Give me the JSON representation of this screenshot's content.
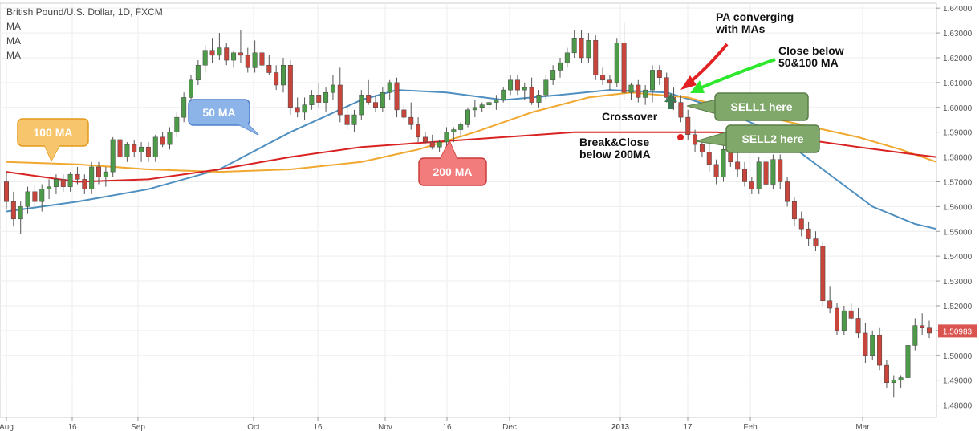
{
  "header": {
    "symbol": "British Pound/U.S. Dollar, 1D, FXCM",
    "indicators": [
      "MA",
      "MA",
      "MA"
    ]
  },
  "colors": {
    "up": "#4d9a48",
    "down": "#c8453c",
    "ma50": "#4f8fbf",
    "ma100": "#f0a830",
    "ma200": "#d92323",
    "callout50": "#8db4e8",
    "callout100": "#f7c56b",
    "callout200": "#f27b7b",
    "sell": "#7fa86a",
    "priceTag": "#d9534f",
    "greenArrow": "#2ee82e",
    "redArrow": "#e22222",
    "grid": "#eeeeee"
  },
  "chart_data": {
    "type": "candlestick",
    "ylim": [
      1.475,
      1.642
    ],
    "yticks": [
      "1.48000",
      "1.49000",
      "1.50000",
      "1.51000",
      "1.52000",
      "1.53000",
      "1.54000",
      "1.55000",
      "1.56000",
      "1.57000",
      "1.58000",
      "1.59000",
      "1.60000",
      "1.61000",
      "1.62000",
      "1.63000",
      "1.64000"
    ],
    "xticks": [
      "Aug",
      "16",
      "Sep",
      "Oct",
      "16",
      "Nov",
      "16",
      "Dec",
      "2013",
      "17",
      "Feb",
      "Mar"
    ],
    "current_price": "1.50983",
    "candles": [
      [
        1.57,
        1.574,
        1.559,
        1.562
      ],
      [
        1.562,
        1.566,
        1.552,
        1.555
      ],
      [
        1.555,
        1.562,
        1.549,
        1.56
      ],
      [
        1.56,
        1.568,
        1.557,
        1.566
      ],
      [
        1.566,
        1.569,
        1.56,
        1.562
      ],
      [
        1.562,
        1.569,
        1.558,
        1.567
      ],
      [
        1.567,
        1.571,
        1.563,
        1.568
      ],
      [
        1.568,
        1.573,
        1.565,
        1.571
      ],
      [
        1.571,
        1.573,
        1.566,
        1.568
      ],
      [
        1.568,
        1.574,
        1.566,
        1.573
      ],
      [
        1.573,
        1.576,
        1.569,
        1.571
      ],
      [
        1.571,
        1.573,
        1.565,
        1.567
      ],
      [
        1.567,
        1.578,
        1.565,
        1.576
      ],
      [
        1.576,
        1.578,
        1.569,
        1.572
      ],
      [
        1.572,
        1.576,
        1.568,
        1.574
      ],
      [
        1.574,
        1.588,
        1.572,
        1.587
      ],
      [
        1.587,
        1.589,
        1.579,
        1.58
      ],
      [
        1.58,
        1.586,
        1.578,
        1.585
      ],
      [
        1.585,
        1.587,
        1.58,
        1.582
      ],
      [
        1.582,
        1.586,
        1.578,
        1.584
      ],
      [
        1.584,
        1.586,
        1.578,
        1.58
      ],
      [
        1.58,
        1.589,
        1.578,
        1.588
      ],
      [
        1.588,
        1.59,
        1.584,
        1.585
      ],
      [
        1.585,
        1.592,
        1.583,
        1.59
      ],
      [
        1.59,
        1.598,
        1.588,
        1.596
      ],
      [
        1.596,
        1.606,
        1.594,
        1.604
      ],
      [
        1.604,
        1.613,
        1.602,
        1.611
      ],
      [
        1.611,
        1.619,
        1.609,
        1.617
      ],
      [
        1.617,
        1.625,
        1.614,
        1.623
      ],
      [
        1.623,
        1.628,
        1.618,
        1.621
      ],
      [
        1.621,
        1.63,
        1.619,
        1.624
      ],
      [
        1.624,
        1.626,
        1.617,
        1.619
      ],
      [
        1.619,
        1.623,
        1.616,
        1.622
      ],
      [
        1.622,
        1.631,
        1.618,
        1.621
      ],
      [
        1.621,
        1.624,
        1.614,
        1.616
      ],
      [
        1.616,
        1.627,
        1.614,
        1.622
      ],
      [
        1.622,
        1.625,
        1.615,
        1.617
      ],
      [
        1.617,
        1.621,
        1.613,
        1.614
      ],
      [
        1.614,
        1.617,
        1.607,
        1.609
      ],
      [
        1.609,
        1.62,
        1.606,
        1.617
      ],
      [
        1.617,
        1.619,
        1.597,
        1.6
      ],
      [
        1.6,
        1.604,
        1.596,
        1.598
      ],
      [
        1.598,
        1.604,
        1.595,
        1.601
      ],
      [
        1.601,
        1.607,
        1.599,
        1.605
      ],
      [
        1.605,
        1.61,
        1.6,
        1.602
      ],
      [
        1.602,
        1.608,
        1.598,
        1.606
      ],
      [
        1.606,
        1.613,
        1.603,
        1.609
      ],
      [
        1.609,
        1.616,
        1.594,
        1.597
      ],
      [
        1.597,
        1.601,
        1.591,
        1.593
      ],
      [
        1.593,
        1.599,
        1.59,
        1.597
      ],
      [
        1.597,
        1.607,
        1.595,
        1.605
      ],
      [
        1.605,
        1.611,
        1.601,
        1.602
      ],
      [
        1.602,
        1.605,
        1.598,
        1.6
      ],
      [
        1.6,
        1.608,
        1.598,
        1.606
      ],
      [
        1.606,
        1.611,
        1.603,
        1.61
      ],
      [
        1.61,
        1.612,
        1.596,
        1.599
      ],
      [
        1.599,
        1.601,
        1.595,
        1.596
      ],
      [
        1.596,
        1.602,
        1.591,
        1.593
      ],
      [
        1.593,
        1.596,
        1.586,
        1.588
      ],
      [
        1.588,
        1.59,
        1.585,
        1.586
      ],
      [
        1.586,
        1.589,
        1.583,
        1.584
      ],
      [
        1.584,
        1.587,
        1.582,
        1.586
      ],
      [
        1.586,
        1.592,
        1.584,
        1.59
      ],
      [
        1.59,
        1.592,
        1.586,
        1.591
      ],
      [
        1.591,
        1.594,
        1.588,
        1.593
      ],
      [
        1.593,
        1.6,
        1.592,
        1.599
      ],
      [
        1.599,
        1.603,
        1.596,
        1.6
      ],
      [
        1.6,
        1.602,
        1.598,
        1.601
      ],
      [
        1.601,
        1.604,
        1.599,
        1.602
      ],
      [
        1.602,
        1.605,
        1.599,
        1.603
      ],
      [
        1.603,
        1.608,
        1.602,
        1.607
      ],
      [
        1.607,
        1.613,
        1.605,
        1.611
      ],
      [
        1.611,
        1.613,
        1.605,
        1.607
      ],
      [
        1.607,
        1.61,
        1.603,
        1.608
      ],
      [
        1.608,
        1.612,
        1.601,
        1.602
      ],
      [
        1.602,
        1.607,
        1.6,
        1.605
      ],
      [
        1.605,
        1.613,
        1.603,
        1.611
      ],
      [
        1.611,
        1.617,
        1.609,
        1.615
      ],
      [
        1.615,
        1.62,
        1.612,
        1.618
      ],
      [
        1.618,
        1.624,
        1.616,
        1.622
      ],
      [
        1.622,
        1.631,
        1.62,
        1.628
      ],
      [
        1.628,
        1.631,
        1.618,
        1.62
      ],
      [
        1.62,
        1.63,
        1.618,
        1.627
      ],
      [
        1.627,
        1.629,
        1.611,
        1.613
      ],
      [
        1.613,
        1.616,
        1.609,
        1.611
      ],
      [
        1.611,
        1.613,
        1.607,
        1.61
      ],
      [
        1.61,
        1.628,
        1.608,
        1.626
      ],
      [
        1.626,
        1.634,
        1.603,
        1.606
      ],
      [
        1.606,
        1.61,
        1.603,
        1.609
      ],
      [
        1.609,
        1.611,
        1.602,
        1.604
      ],
      [
        1.604,
        1.609,
        1.601,
        1.607
      ],
      [
        1.607,
        1.617,
        1.602,
        1.615
      ],
      [
        1.615,
        1.617,
        1.609,
        1.612
      ],
      [
        1.612,
        1.614,
        1.602,
        1.604
      ],
      [
        1.604,
        1.608,
        1.599,
        1.602
      ],
      [
        1.602,
        1.605,
        1.594,
        1.596
      ],
      [
        1.596,
        1.599,
        1.587,
        1.589
      ],
      [
        1.589,
        1.591,
        1.582,
        1.585
      ],
      [
        1.585,
        1.587,
        1.58,
        1.582
      ],
      [
        1.582,
        1.585,
        1.574,
        1.577
      ],
      [
        1.577,
        1.579,
        1.569,
        1.572
      ],
      [
        1.572,
        1.586,
        1.57,
        1.583
      ],
      [
        1.583,
        1.585,
        1.576,
        1.578
      ],
      [
        1.578,
        1.582,
        1.572,
        1.575
      ],
      [
        1.575,
        1.578,
        1.568,
        1.57
      ],
      [
        1.57,
        1.572,
        1.565,
        1.567
      ],
      [
        1.567,
        1.58,
        1.565,
        1.578
      ],
      [
        1.578,
        1.58,
        1.567,
        1.569
      ],
      [
        1.569,
        1.581,
        1.567,
        1.579
      ],
      [
        1.579,
        1.581,
        1.567,
        1.57
      ],
      [
        1.57,
        1.572,
        1.56,
        1.562
      ],
      [
        1.562,
        1.564,
        1.552,
        1.555
      ],
      [
        1.555,
        1.558,
        1.548,
        1.551
      ],
      [
        1.551,
        1.554,
        1.544,
        1.547
      ],
      [
        1.547,
        1.55,
        1.542,
        1.544
      ],
      [
        1.544,
        1.546,
        1.52,
        1.522
      ],
      [
        1.522,
        1.528,
        1.517,
        1.519
      ],
      [
        1.519,
        1.521,
        1.508,
        1.51
      ],
      [
        1.51,
        1.52,
        1.508,
        1.518
      ],
      [
        1.518,
        1.521,
        1.514,
        1.515
      ],
      [
        1.515,
        1.519,
        1.507,
        1.509
      ],
      [
        1.509,
        1.513,
        1.497,
        1.5
      ],
      [
        1.5,
        1.51,
        1.498,
        1.508
      ],
      [
        1.508,
        1.511,
        1.494,
        1.496
      ],
      [
        1.496,
        1.498,
        1.487,
        1.489
      ],
      [
        1.489,
        1.492,
        1.483,
        1.49
      ],
      [
        1.49,
        1.492,
        1.487,
        1.491
      ],
      [
        1.491,
        1.506,
        1.489,
        1.504
      ],
      [
        1.504,
        1.515,
        1.502,
        1.512
      ],
      [
        1.512,
        1.517,
        1.508,
        1.511
      ],
      [
        1.511,
        1.514,
        1.507,
        1.509
      ]
    ],
    "series": [
      {
        "ma": "50",
        "values": [
          [
            0,
            1.558
          ],
          [
            10,
            1.562
          ],
          [
            20,
            1.567
          ],
          [
            30,
            1.575
          ],
          [
            40,
            1.59
          ],
          [
            50,
            1.603
          ],
          [
            55,
            1.607
          ],
          [
            62,
            1.606
          ],
          [
            70,
            1.603
          ],
          [
            78,
            1.605
          ],
          [
            85,
            1.607
          ],
          [
            93,
            1.606
          ],
          [
            100,
            1.6
          ],
          [
            108,
            1.59
          ],
          [
            115,
            1.575
          ],
          [
            122,
            1.56
          ],
          [
            128,
            1.553
          ],
          [
            131,
            1.551
          ]
        ]
      },
      {
        "ma": "100",
        "values": [
          [
            0,
            1.578
          ],
          [
            10,
            1.577
          ],
          [
            20,
            1.575
          ],
          [
            30,
            1.574
          ],
          [
            40,
            1.575
          ],
          [
            50,
            1.578
          ],
          [
            58,
            1.583
          ],
          [
            66,
            1.59
          ],
          [
            74,
            1.598
          ],
          [
            82,
            1.604
          ],
          [
            88,
            1.606
          ],
          [
            96,
            1.604
          ],
          [
            104,
            1.598
          ],
          [
            112,
            1.593
          ],
          [
            120,
            1.588
          ],
          [
            126,
            1.583
          ],
          [
            131,
            1.578
          ]
        ]
      },
      {
        "ma": "200",
        "values": [
          [
            0,
            1.574
          ],
          [
            10,
            1.57
          ],
          [
            20,
            1.571
          ],
          [
            30,
            1.575
          ],
          [
            40,
            1.58
          ],
          [
            50,
            1.584
          ],
          [
            60,
            1.586
          ],
          [
            70,
            1.588
          ],
          [
            80,
            1.59
          ],
          [
            90,
            1.59
          ],
          [
            100,
            1.59
          ],
          [
            110,
            1.588
          ],
          [
            120,
            1.584
          ],
          [
            128,
            1.581
          ],
          [
            131,
            1.58
          ]
        ]
      }
    ],
    "annotations": {
      "ma50_label": "50 MA",
      "ma100_label": "100 MA",
      "ma200_label": "200 MA",
      "pa_converging": "PA converging\nwith MAs",
      "close_below": "Close below\n50&100 MA",
      "crossover": "Crossover",
      "break_close": "Break&Close\nbelow 200MA",
      "sell1": "SELL1 here",
      "sell2": "SELL2 here"
    }
  }
}
